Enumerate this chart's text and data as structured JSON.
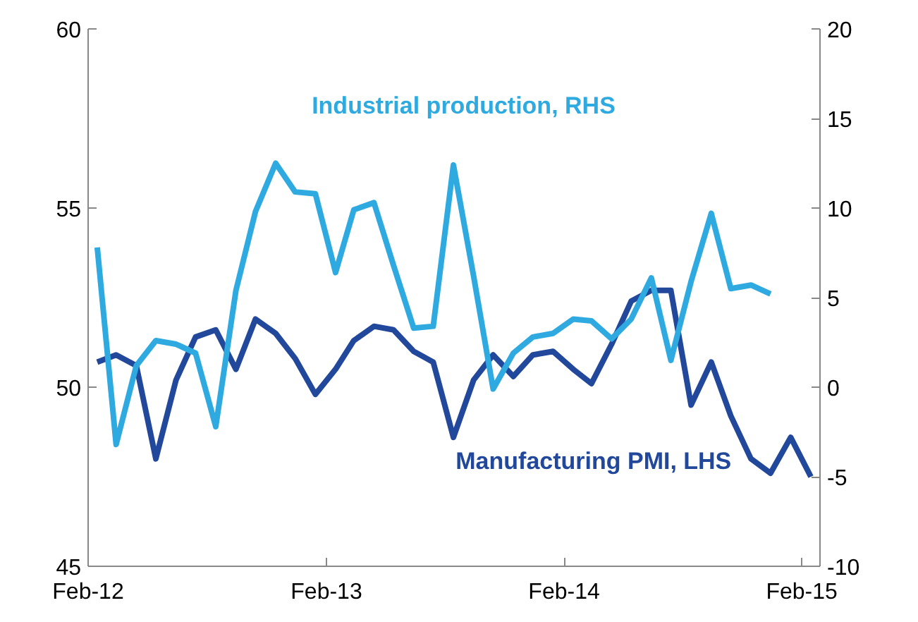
{
  "chart_data": {
    "type": "line",
    "x": [
      "2012-02-15",
      "2012-03-15",
      "2012-04-15",
      "2012-05-15",
      "2012-06-15",
      "2012-07-15",
      "2012-08-15",
      "2012-09-15",
      "2012-10-15",
      "2012-11-15",
      "2012-12-15",
      "2013-01-15",
      "2013-02-15",
      "2013-03-15",
      "2013-04-15",
      "2013-05-15",
      "2013-06-15",
      "2013-07-15",
      "2013-08-15",
      "2013-09-15",
      "2013-10-15",
      "2013-11-15",
      "2013-12-15",
      "2014-01-15",
      "2014-02-15",
      "2014-03-15",
      "2014-04-15",
      "2014-05-15",
      "2014-06-15",
      "2014-07-15",
      "2014-08-15",
      "2014-09-15",
      "2014-10-15",
      "2014-11-15",
      "2014-12-15",
      "2015-01-15",
      "2015-02-15"
    ],
    "series": [
      {
        "name": "Manufacturing PMI, LHS",
        "color": "#21489a",
        "values": [
          50.7,
          50.9,
          50.6,
          48.0,
          50.2,
          51.4,
          51.6,
          50.5,
          51.9,
          51.5,
          50.8,
          49.8,
          50.5,
          51.3,
          51.7,
          51.6,
          51.0,
          50.7,
          48.6,
          50.2,
          50.9,
          50.3,
          50.9,
          51.0,
          50.5,
          50.1,
          51.2,
          52.4,
          52.7,
          52.7,
          49.5,
          50.7,
          49.2,
          48.0,
          47.6,
          48.6,
          47.5
        ]
      },
      {
        "name": "Industrial production, RHS",
        "color": "#2eaae1",
        "axis": "y2",
        "x": [
          "2012-02-15",
          "2012-03-15",
          "2012-04-15",
          "2012-05-15",
          "2012-06-15",
          "2012-07-15",
          "2012-08-15",
          "2012-09-15",
          "2012-10-15",
          "2012-11-15",
          "2012-12-15",
          "2013-01-15",
          "2013-02-15",
          "2013-03-15",
          "2013-04-15",
          "2013-05-15",
          "2013-06-15",
          "2013-07-15",
          "2013-08-15",
          "2013-09-15",
          "2013-10-15",
          "2013-11-15",
          "2013-12-15",
          "2014-01-15",
          "2014-02-15",
          "2014-03-15",
          "2014-04-15",
          "2014-05-15",
          "2014-06-15",
          "2014-07-15",
          "2014-08-15",
          "2014-09-15",
          "2014-10-15",
          "2014-11-15",
          "2014-12-15"
        ],
        "values": [
          7.8,
          -3.2,
          1.2,
          2.6,
          2.4,
          1.9,
          -2.2,
          5.4,
          9.8,
          12.5,
          10.9,
          10.8,
          6.4,
          9.9,
          10.3,
          6.8,
          3.3,
          3.4,
          12.4,
          6.2,
          -0.1,
          1.9,
          2.8,
          3.0,
          3.8,
          3.7,
          2.7,
          3.8,
          6.1,
          1.5,
          5.9,
          9.7,
          5.5,
          5.7,
          5.2
        ]
      }
    ],
    "xlim": [
      "2012-02-01",
      "2015-03-01"
    ],
    "xticks": [
      {
        "value": "2012-02-01",
        "label": "Feb-12"
      },
      {
        "value": "2013-02-01",
        "label": "Feb-13"
      },
      {
        "value": "2014-02-01",
        "label": "Feb-14"
      },
      {
        "value": "2015-02-01",
        "label": "Feb-15"
      }
    ],
    "ylim": [
      45,
      60
    ],
    "yticks": [
      45,
      50,
      55,
      60
    ],
    "y2lim": [
      -10,
      20
    ],
    "y2ticks": [
      -10,
      -5,
      0,
      5,
      10,
      15,
      20
    ],
    "grid": false
  }
}
